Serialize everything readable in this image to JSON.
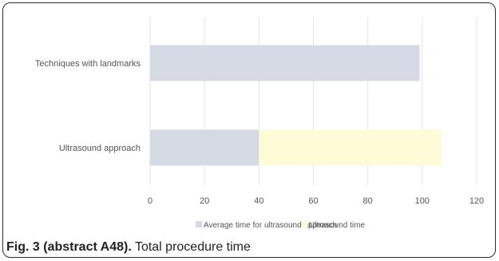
{
  "caption": {
    "label": "Fig. 3 (abstract A48).",
    "text": "Total procedure time"
  },
  "chart_data": {
    "type": "bar",
    "orientation": "horizontal",
    "stacked": true,
    "categories": [
      "Techniques with landmarks",
      "Ultrasound approach"
    ],
    "series": [
      {
        "name": "Average time for ultrasound approach",
        "values": [
          99,
          40
        ],
        "color": "#d6dae4"
      },
      {
        "name": "Ultrasound time",
        "values": [
          0,
          67
        ],
        "color": "#fffbd6"
      }
    ],
    "xlim": [
      0,
      120
    ],
    "xticks": [
      "0",
      "20",
      "40",
      "60",
      "80",
      "100",
      "120"
    ],
    "grid": "vertical",
    "legend_position": "bottom"
  }
}
